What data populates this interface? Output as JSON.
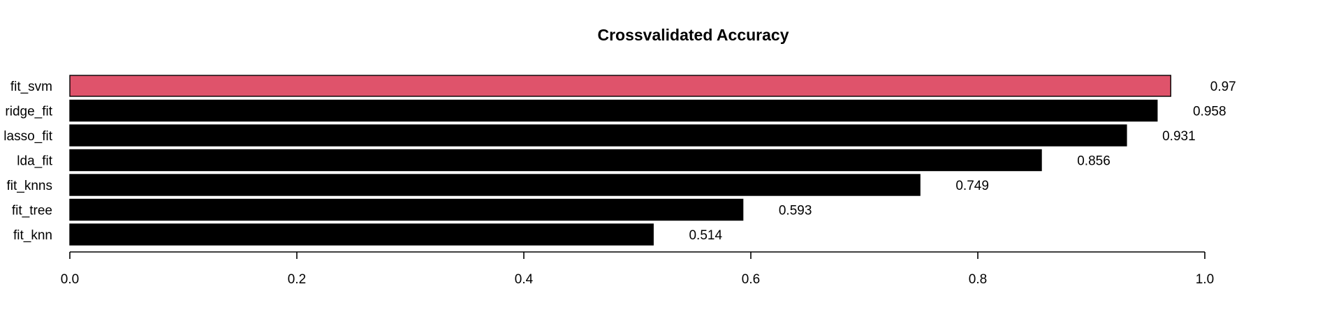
{
  "chart_data": {
    "type": "bar",
    "orientation": "horizontal",
    "title": "Crossvalidated Accuracy",
    "xlabel": "",
    "ylabel": "",
    "categories": [
      "fit_svm",
      "ridge_fit",
      "lasso_fit",
      "lda_fit",
      "fit_knns",
      "fit_tree",
      "fit_knn"
    ],
    "values": [
      0.97,
      0.958,
      0.931,
      0.856,
      0.749,
      0.593,
      0.514
    ],
    "value_labels": [
      "0.97",
      "0.958",
      "0.931",
      "0.856",
      "0.749",
      "0.593",
      "0.514"
    ],
    "bar_colors": [
      "#DF536B",
      "#000000",
      "#000000",
      "#000000",
      "#000000",
      "#000000",
      "#000000"
    ],
    "xlim": [
      0,
      1
    ],
    "xticks": [
      0,
      0.2,
      0.4,
      0.6,
      0.8,
      1
    ],
    "xtick_labels": [
      "0.0",
      "0.2",
      "0.4",
      "0.6",
      "0.8",
      "1.0"
    ],
    "grid": false,
    "legend": "none"
  }
}
